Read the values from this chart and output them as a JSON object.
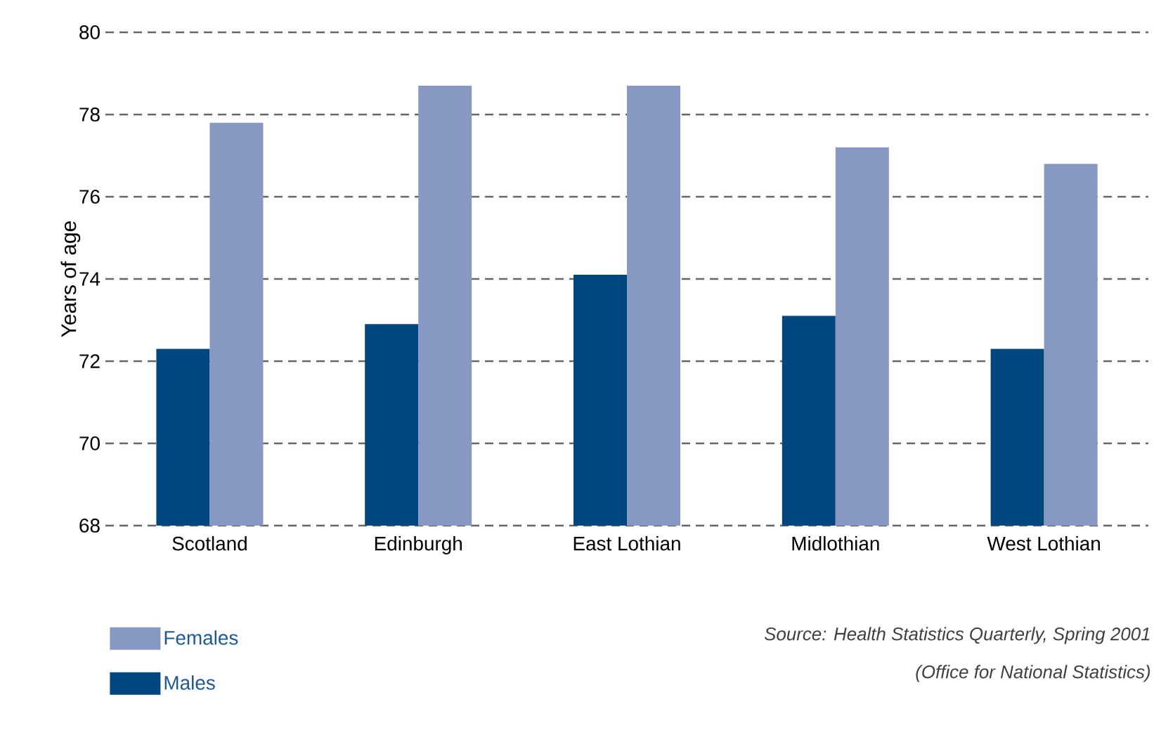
{
  "chart_data": {
    "type": "bar",
    "ylabel": "Years of age",
    "categories": [
      "Scotland",
      "Edinburgh",
      "East Lothian",
      "Midlothian",
      "West Lothian"
    ],
    "series": [
      {
        "name": "Males",
        "color": "#00467f",
        "values": [
          72.3,
          72.9,
          74.1,
          73.1,
          72.3
        ]
      },
      {
        "name": "Females",
        "color": "#8799c2",
        "values": [
          77.8,
          78.7,
          78.7,
          77.2,
          76.8
        ]
      }
    ],
    "ylim": [
      68,
      80
    ],
    "yticks": [
      68,
      70,
      72,
      74,
      76,
      78,
      80
    ],
    "grid": "y",
    "legend": "bottom left",
    "annotations": [
      "Source: Health Statistics Quarterly, Spring 2001",
      "(Office for National Statistics)"
    ]
  }
}
